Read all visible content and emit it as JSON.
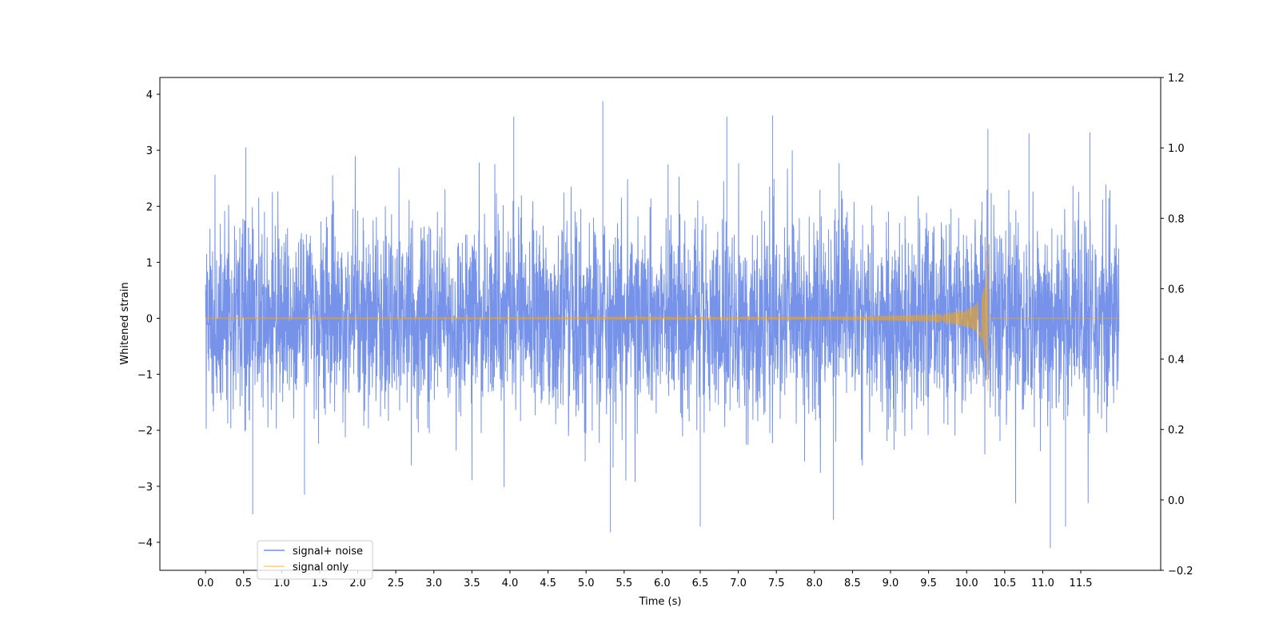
{
  "chart_data": {
    "type": "line",
    "title": "",
    "xlabel": "Time (s)",
    "ylabel": "Whitened strain",
    "y2label": "",
    "xlim": [
      -0.6,
      12.55
    ],
    "ylim": [
      -4.5,
      4.3
    ],
    "y2lim": [
      -0.2,
      1.2
    ],
    "x_ticks": [
      "0.0",
      "0.5",
      "1.0",
      "1.5",
      "2.0",
      "2.5",
      "3.0",
      "3.5",
      "4.0",
      "4.5",
      "5.0",
      "5.5",
      "6.0",
      "6.5",
      "7.0",
      "7.5",
      "8.0",
      "8.5",
      "9.0",
      "9.5",
      "10.0",
      "10.5",
      "11.0",
      "11.5"
    ],
    "y_ticks": [
      "4",
      "3",
      "2",
      "1",
      "0",
      "−1",
      "−2",
      "−3",
      "−4"
    ],
    "y2_ticks": [
      "1.2",
      "1.0",
      "0.8",
      "0.6",
      "0.4",
      "0.2",
      "0.0",
      "−0.2"
    ],
    "grid": false,
    "legend_position": "lower-left",
    "series": [
      {
        "name": "signal+ noise",
        "color": "#4169e1",
        "kind": "noise",
        "x_range": [
          0.0,
          12.0
        ],
        "sigma": 0.9,
        "observed_max": 3.88,
        "observed_min": -4.1,
        "spikes": [
          [
            0.53,
            3.05
          ],
          [
            0.62,
            -3.5
          ],
          [
            1.3,
            -3.15
          ],
          [
            4.05,
            3.6
          ],
          [
            5.22,
            3.88
          ],
          [
            5.32,
            -3.82
          ],
          [
            6.5,
            -3.72
          ],
          [
            6.85,
            3.6
          ],
          [
            7.45,
            3.62
          ],
          [
            8.25,
            -3.6
          ],
          [
            10.28,
            3.38
          ],
          [
            10.82,
            3.3
          ],
          [
            11.1,
            -4.1
          ],
          [
            11.3,
            -3.72
          ],
          [
            11.62,
            3.32
          ]
        ]
      },
      {
        "name": "signal only",
        "color": "#ffa500",
        "kind": "chirp",
        "x_range": [
          0.0,
          12.0
        ],
        "merger_time": 10.28,
        "peak_amplitude": 1.4,
        "trough_amplitude": -1.3
      }
    ]
  }
}
